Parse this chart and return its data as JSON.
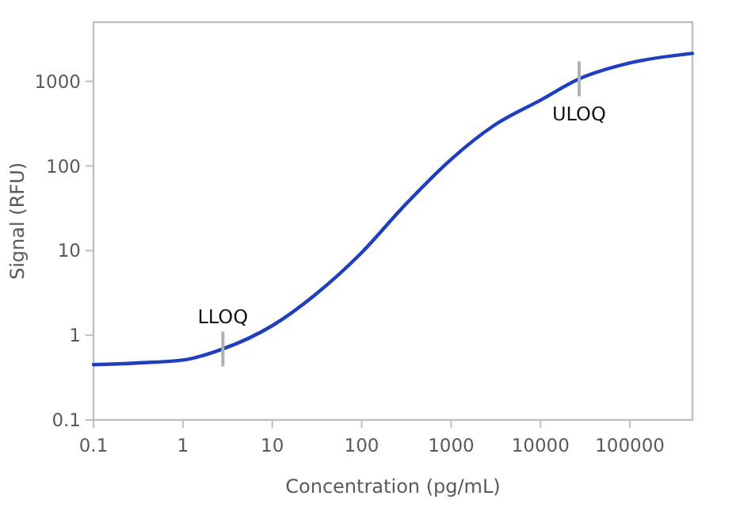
{
  "chart_data": {
    "type": "line",
    "xlabel": "Concentration (pg/mL)",
    "ylabel": "Signal (RFU)",
    "log": "xy",
    "grid": false,
    "marker": "none",
    "line_style": "solid",
    "xlim": [
      0.1,
      500000
    ],
    "xticks": [
      0.1,
      1,
      10,
      100,
      1000,
      10000,
      100000
    ],
    "ylim": [
      0.1,
      5000
    ],
    "yticks": [
      0.1,
      1,
      10,
      100,
      1000
    ],
    "series": [
      {
        "color": "#1f3fbf",
        "x": [
          0.1,
          0.3,
          1,
          2.8,
          10,
          30,
          100,
          300,
          1000,
          3000,
          10000,
          27000,
          100000,
          500000
        ],
        "values": [
          0.45,
          0.47,
          0.51,
          0.69,
          1.3,
          3,
          9.5,
          34,
          120,
          300,
          600,
          1070,
          1650,
          2140
        ]
      }
    ],
    "annotations": [
      {
        "text": "LLOQ",
        "x": 2.8,
        "y": 0.69
      },
      {
        "text": "ULOQ",
        "x": 27000,
        "y": 1070
      }
    ]
  }
}
